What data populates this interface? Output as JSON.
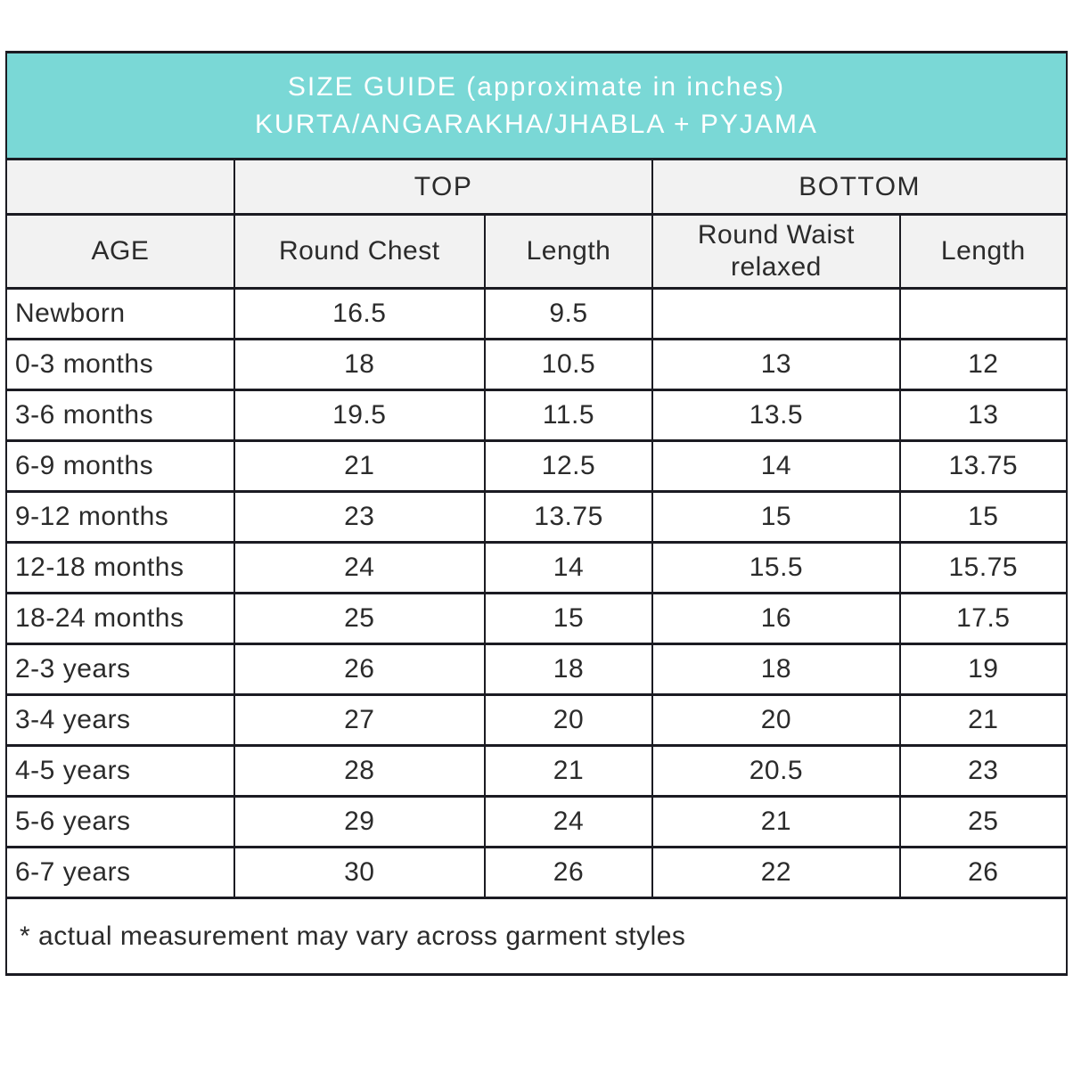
{
  "banner": {
    "line1": "SIZE GUIDE (approximate in inches)",
    "line2": "KURTA/ANGARAKHA/JHABLA + PYJAMA"
  },
  "table": {
    "group_headers": {
      "age_spacer": "",
      "top": "TOP",
      "bottom": "BOTTOM"
    },
    "columns": [
      "AGE",
      "Round Chest",
      "Length",
      "Round Waist relaxed",
      "Length"
    ],
    "rows": [
      [
        "Newborn",
        "16.5",
        "9.5",
        "",
        ""
      ],
      [
        "0-3 months",
        "18",
        "10.5",
        "13",
        "12"
      ],
      [
        "3-6 months",
        "19.5",
        "11.5",
        "13.5",
        "13"
      ],
      [
        "6-9 months",
        "21",
        "12.5",
        "14",
        "13.75"
      ],
      [
        "9-12 months",
        "23",
        "13.75",
        "15",
        "15"
      ],
      [
        "12-18 months",
        "24",
        "14",
        "15.5",
        "15.75"
      ],
      [
        "18-24 months",
        "25",
        "15",
        "16",
        "17.5"
      ],
      [
        "2-3 years",
        "26",
        "18",
        "18",
        "19"
      ],
      [
        "3-4 years",
        "27",
        "20",
        "20",
        "21"
      ],
      [
        "4-5 years",
        "28",
        "21",
        "20.5",
        "23"
      ],
      [
        "5-6 years",
        "29",
        "24",
        "21",
        "25"
      ],
      [
        "6-7 years",
        "30",
        "26",
        "22",
        "26"
      ]
    ]
  },
  "footnote": "* actual measurement may vary across garment styles",
  "colors": {
    "banner_bg": "#7ad8d6",
    "banner_text": "#ffffff",
    "header_bg": "#f2f2f2",
    "border": "#1b1b22",
    "text": "#2b2b2b"
  },
  "chart_data": {
    "type": "table",
    "title": "SIZE GUIDE (approximate in inches) KURTA/ANGARAKHA/JHABLA + PYJAMA",
    "column_groups": [
      {
        "label": "",
        "span": 1
      },
      {
        "label": "TOP",
        "span": 2
      },
      {
        "label": "BOTTOM",
        "span": 2
      }
    ],
    "columns": [
      "AGE",
      "Round Chest",
      "Length",
      "Round Waist relaxed",
      "Length"
    ],
    "rows": [
      {
        "age": "Newborn",
        "top_round_chest": 16.5,
        "top_length": 9.5,
        "bottom_round_waist_relaxed": null,
        "bottom_length": null
      },
      {
        "age": "0-3 months",
        "top_round_chest": 18,
        "top_length": 10.5,
        "bottom_round_waist_relaxed": 13,
        "bottom_length": 12
      },
      {
        "age": "3-6 months",
        "top_round_chest": 19.5,
        "top_length": 11.5,
        "bottom_round_waist_relaxed": 13.5,
        "bottom_length": 13
      },
      {
        "age": "6-9 months",
        "top_round_chest": 21,
        "top_length": 12.5,
        "bottom_round_waist_relaxed": 14,
        "bottom_length": 13.75
      },
      {
        "age": "9-12 months",
        "top_round_chest": 23,
        "top_length": 13.75,
        "bottom_round_waist_relaxed": 15,
        "bottom_length": 15
      },
      {
        "age": "12-18 months",
        "top_round_chest": 24,
        "top_length": 14,
        "bottom_round_waist_relaxed": 15.5,
        "bottom_length": 15.75
      },
      {
        "age": "18-24 months",
        "top_round_chest": 25,
        "top_length": 15,
        "bottom_round_waist_relaxed": 16,
        "bottom_length": 17.5
      },
      {
        "age": "2-3 years",
        "top_round_chest": 26,
        "top_length": 18,
        "bottom_round_waist_relaxed": 18,
        "bottom_length": 19
      },
      {
        "age": "3-4 years",
        "top_round_chest": 27,
        "top_length": 20,
        "bottom_round_waist_relaxed": 20,
        "bottom_length": 21
      },
      {
        "age": "4-5 years",
        "top_round_chest": 28,
        "top_length": 21,
        "bottom_round_waist_relaxed": 20.5,
        "bottom_length": 23
      },
      {
        "age": "5-6 years",
        "top_round_chest": 29,
        "top_length": 24,
        "bottom_round_waist_relaxed": 21,
        "bottom_length": 25
      },
      {
        "age": "6-7 years",
        "top_round_chest": 30,
        "top_length": 26,
        "bottom_round_waist_relaxed": 22,
        "bottom_length": 26
      }
    ],
    "footnote": "* actual measurement may vary across garment styles",
    "units": "inches"
  }
}
